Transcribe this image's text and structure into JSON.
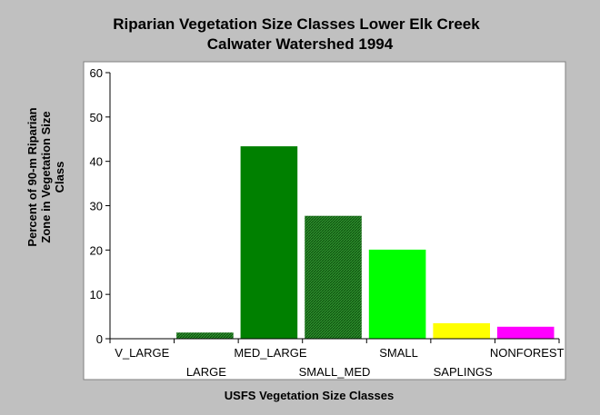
{
  "chart_data": {
    "type": "bar",
    "title_lines": [
      "Riparian Vegetation Size Classes Lower Elk Creek",
      "Calwater Watershed 1994"
    ],
    "xlabel": "USFS Vegetation Size Classes",
    "ylabel_lines": [
      "Percent of 90-m Riparian",
      "Zone in Vegetation Size",
      "Class"
    ],
    "categories": [
      "V_LARGE",
      "LARGE",
      "MED_LARGE",
      "SMALL_MED",
      "SMALL",
      "SAPLINGS",
      "NONFOREST"
    ],
    "values": [
      0,
      1.5,
      43.5,
      27.8,
      20.2,
      3.6,
      2.8
    ],
    "colors": [
      "#006400",
      "#1f6e1f",
      "#008000",
      "#2a8a2a",
      "#00ff00",
      "#ffff00",
      "#ff00ff"
    ],
    "hatched": [
      false,
      true,
      false,
      true,
      false,
      false,
      false
    ],
    "ylim": [
      0,
      60
    ],
    "yticks": [
      0,
      10,
      20,
      30,
      40,
      50,
      60
    ],
    "grid": false,
    "legend": "none"
  }
}
